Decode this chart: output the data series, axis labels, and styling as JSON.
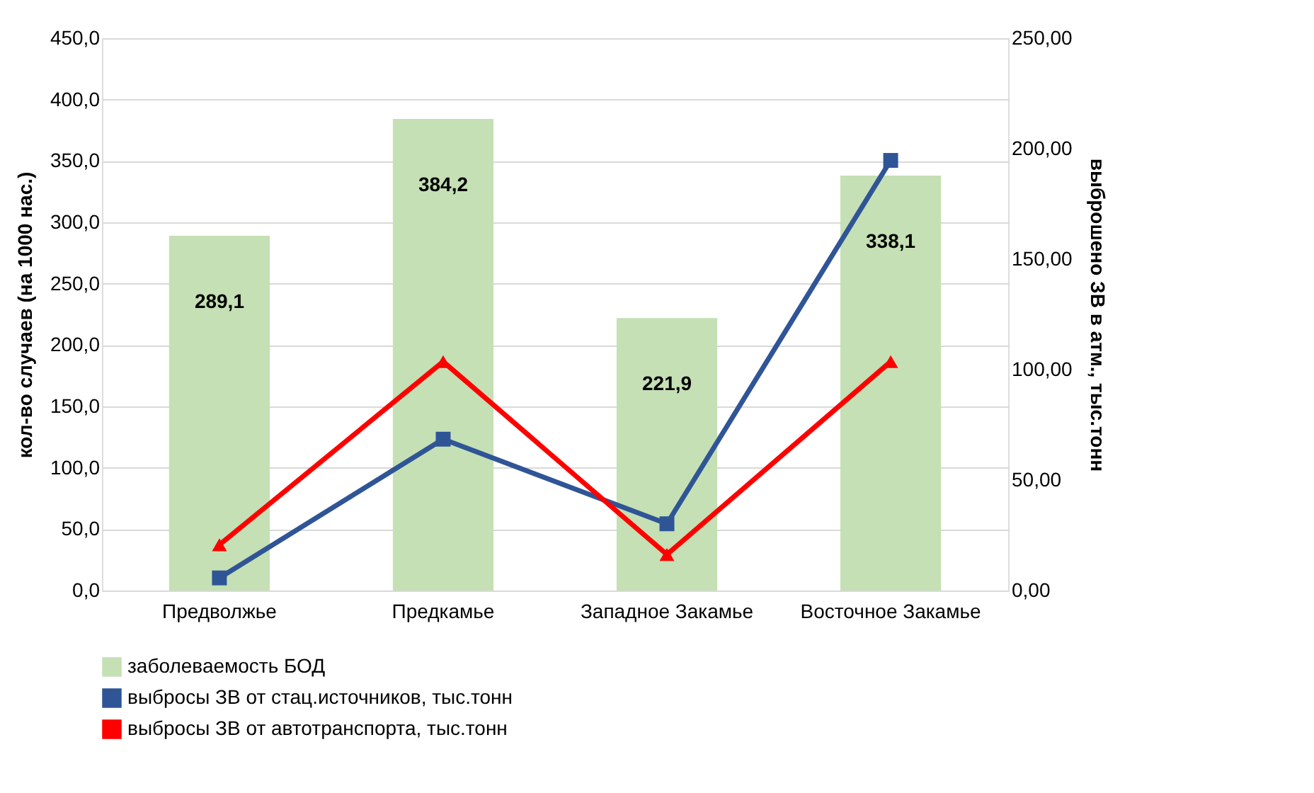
{
  "chart_data": {
    "type": "bar",
    "categories": [
      "Предволжье",
      "Предкамье",
      "Западное Закамье",
      "Восточное Закамье"
    ],
    "ylabel": "кол-во случаев (на 1000 нас.)",
    "y2label": "выброшено ЗВ в атм., тыс.тонн",
    "series": [
      {
        "name": "заболеваемость БОД",
        "color": "#c5e0b4",
        "values": [
          289.1,
          384.2,
          221.9,
          338.1
        ],
        "value_labels": [
          "289,1",
          "384,2",
          "221,9",
          "338,1"
        ]
      },
      {
        "name": "выбросы ЗВ от стац.источников, тыс.тонн",
        "type": "line",
        "axis": "y2",
        "marker": "square",
        "color": "#2f5597",
        "values": [
          5.7,
          68.5,
          30.2,
          194.7
        ]
      },
      {
        "name": "выбросы ЗВ от автотранспорта, тыс.тонн",
        "type": "line",
        "axis": "y2",
        "marker": "triangle",
        "color": "#ff0000",
        "values": [
          20.7,
          103.6,
          16.3,
          103.6
        ]
      }
    ],
    "ylim": [
      0,
      450
    ],
    "yticks": [
      {
        "value": 0,
        "label": "0,0"
      },
      {
        "value": 50,
        "label": "50,0"
      },
      {
        "value": 100,
        "label": "100,0"
      },
      {
        "value": 150,
        "label": "150,0"
      },
      {
        "value": 200,
        "label": "200,0"
      },
      {
        "value": 250,
        "label": "250,0"
      },
      {
        "value": 300,
        "label": "300,0"
      },
      {
        "value": 350,
        "label": "350,0"
      },
      {
        "value": 400,
        "label": "400,0"
      },
      {
        "value": 450,
        "label": "450,0"
      }
    ],
    "y2lim": [
      0,
      250
    ],
    "y2ticks": [
      {
        "value": 0,
        "label": "0,00"
      },
      {
        "value": 50,
        "label": "50,00"
      },
      {
        "value": 100,
        "label": "100,00"
      },
      {
        "value": 150,
        "label": "150,00"
      },
      {
        "value": 200,
        "label": "200,00"
      },
      {
        "value": 250,
        "label": "250,00"
      }
    ],
    "grid": "y",
    "legend": "bottom"
  }
}
